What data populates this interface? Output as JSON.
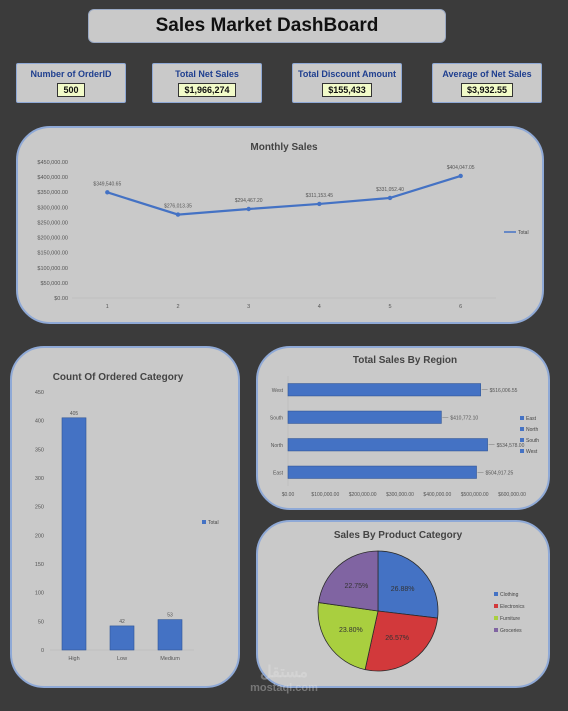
{
  "header": {
    "title": "Sales Market DashBoard"
  },
  "kpis": [
    {
      "label": "Number of OrderID",
      "value": "500"
    },
    {
      "label": "Total Net Sales",
      "value": "$1,966,274"
    },
    {
      "label": "Total Discount Amount",
      "value": "$155,433"
    },
    {
      "label": "Average of Net Sales",
      "value": "$3,932.55"
    }
  ],
  "colors": {
    "background": "#3b3b3b",
    "panel": "#c9c9c9",
    "border": "#8fa9d6",
    "series_blue": "#4472c4",
    "kpi_label": "#1f3f8f",
    "kpi_value_bg": "#f2fbc9"
  },
  "chart_data": [
    {
      "id": "monthly",
      "type": "line",
      "title": "Monthly Sales",
      "x": [
        "1",
        "2",
        "3",
        "4",
        "5",
        "6"
      ],
      "series": [
        {
          "name": "Total",
          "values": [
            349540.65,
            276013.35,
            294467.2,
            311153.45,
            331052.4,
            404047.05
          ]
        }
      ],
      "data_labels": [
        "$349,540.65",
        "$276,013.35",
        "$294,467.20",
        "$311,153.45",
        "$331,052.40",
        "$404,047.05"
      ],
      "y_ticks": [
        "$0.00",
        "$50,000.00",
        "$100,000.00",
        "$150,000.00",
        "$200,000.00",
        "$250,000.00",
        "$300,000.00",
        "$350,000.00",
        "$400,000.00",
        "$450,000.00"
      ],
      "ylim": [
        0,
        450000
      ],
      "legend": "right",
      "grid": false
    },
    {
      "id": "category",
      "type": "bar",
      "title": "Count Of Ordered Category",
      "categories": [
        "High",
        "Low",
        "Medium"
      ],
      "series": [
        {
          "name": "Total",
          "values": [
            405,
            42,
            53
          ]
        }
      ],
      "data_labels": [
        "405",
        "42",
        "53"
      ],
      "y_ticks": [
        "0",
        "50",
        "100",
        "150",
        "200",
        "250",
        "300",
        "350",
        "400",
        "450"
      ],
      "ylim": [
        0,
        450
      ],
      "legend": "right",
      "grid": false
    },
    {
      "id": "region",
      "type": "bar",
      "orientation": "horizontal",
      "title": "Total Sales By Region",
      "categories": [
        "East",
        "North",
        "South",
        "West"
      ],
      "series": [
        {
          "name": "Total",
          "values": [
            504917.25,
            534578.0,
            410772.1,
            516006.55
          ]
        }
      ],
      "data_labels": [
        "$504,917.25",
        "$534,578.00",
        "$410,772.10",
        "$516,006.55"
      ],
      "x_ticks": [
        "$0.00",
        "$100,000.00",
        "$200,000.00",
        "$300,000.00",
        "$400,000.00",
        "$500,000.00",
        "$600,000.00"
      ],
      "xlim": [
        0,
        600000
      ],
      "legend_entries": [
        "East",
        "North",
        "South",
        "West"
      ],
      "legend": "right",
      "grid": false
    },
    {
      "id": "product",
      "type": "pie",
      "title": "Sales By Product Category",
      "categories": [
        "Clothing",
        "Electronics",
        "Furniture",
        "Groceries"
      ],
      "values": [
        26.88,
        26.57,
        23.8,
        22.75
      ],
      "data_labels": [
        "26.88%",
        "26.57%",
        "23.80%",
        "22.75%"
      ],
      "slice_colors": [
        "#4472c4",
        "#d2393b",
        "#a9cf3f",
        "#8064a2"
      ],
      "legend": "right"
    }
  ],
  "watermark": {
    "logo": "مستقل",
    "text": "mostaql.com"
  }
}
